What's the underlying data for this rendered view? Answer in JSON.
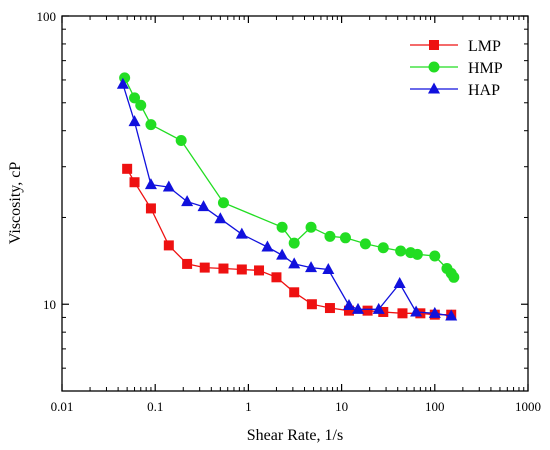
{
  "chart_data": {
    "type": "line",
    "x_scale": "log",
    "y_scale": "log",
    "xlabel": "Shear Rate, 1/s",
    "ylabel": "Viscosity, cP",
    "xlim": [
      0.01,
      1000
    ],
    "ylim": [
      5,
      100
    ],
    "x_ticks": [
      0.01,
      0.1,
      1,
      10,
      100,
      1000
    ],
    "x_tick_labels": [
      "0.01",
      "0.1",
      "1",
      "10",
      "100",
      "1000"
    ],
    "y_ticks": [
      10,
      100
    ],
    "y_tick_labels": [
      "10",
      "100"
    ],
    "grid": false,
    "legend_position": "top-right",
    "series": [
      {
        "name": "LMP",
        "color": "#ee1111",
        "marker": "square",
        "x": [
          0.05,
          0.06,
          0.09,
          0.14,
          0.22,
          0.34,
          0.54,
          0.85,
          1.3,
          2.0,
          3.1,
          4.8,
          7.5,
          12,
          19,
          28,
          45,
          70,
          100,
          150
        ],
        "y": [
          29.5,
          26.5,
          21.5,
          16,
          13.8,
          13.4,
          13.3,
          13.2,
          13.1,
          12.4,
          11,
          10,
          9.7,
          9.5,
          9.5,
          9.4,
          9.3,
          9.3,
          9.2,
          9.2
        ]
      },
      {
        "name": "HMP",
        "color": "#22dd22",
        "marker": "circle",
        "x": [
          0.047,
          0.06,
          0.07,
          0.09,
          0.19,
          0.54,
          2.3,
          3.1,
          4.7,
          7.5,
          11,
          18,
          28,
          43,
          55,
          65,
          100,
          135,
          150,
          160
        ],
        "y": [
          61,
          52,
          49,
          42,
          37,
          22.5,
          18.5,
          16.3,
          18.5,
          17.2,
          17,
          16.2,
          15.7,
          15.3,
          15.1,
          14.9,
          14.7,
          13.3,
          12.8,
          12.4
        ]
      },
      {
        "name": "HAP",
        "color": "#1111dd",
        "marker": "triangle",
        "x": [
          0.045,
          0.06,
          0.09,
          0.14,
          0.22,
          0.33,
          0.5,
          0.85,
          1.6,
          2.3,
          3.1,
          4.7,
          7.2,
          12,
          15,
          25,
          42,
          63,
          100,
          150
        ],
        "y": [
          58,
          43,
          26,
          25.5,
          22.7,
          21.8,
          19.8,
          17.5,
          15.8,
          14.8,
          13.8,
          13.4,
          13.2,
          9.9,
          9.6,
          9.6,
          11.8,
          9.4,
          9.3,
          9.1
        ]
      }
    ]
  }
}
